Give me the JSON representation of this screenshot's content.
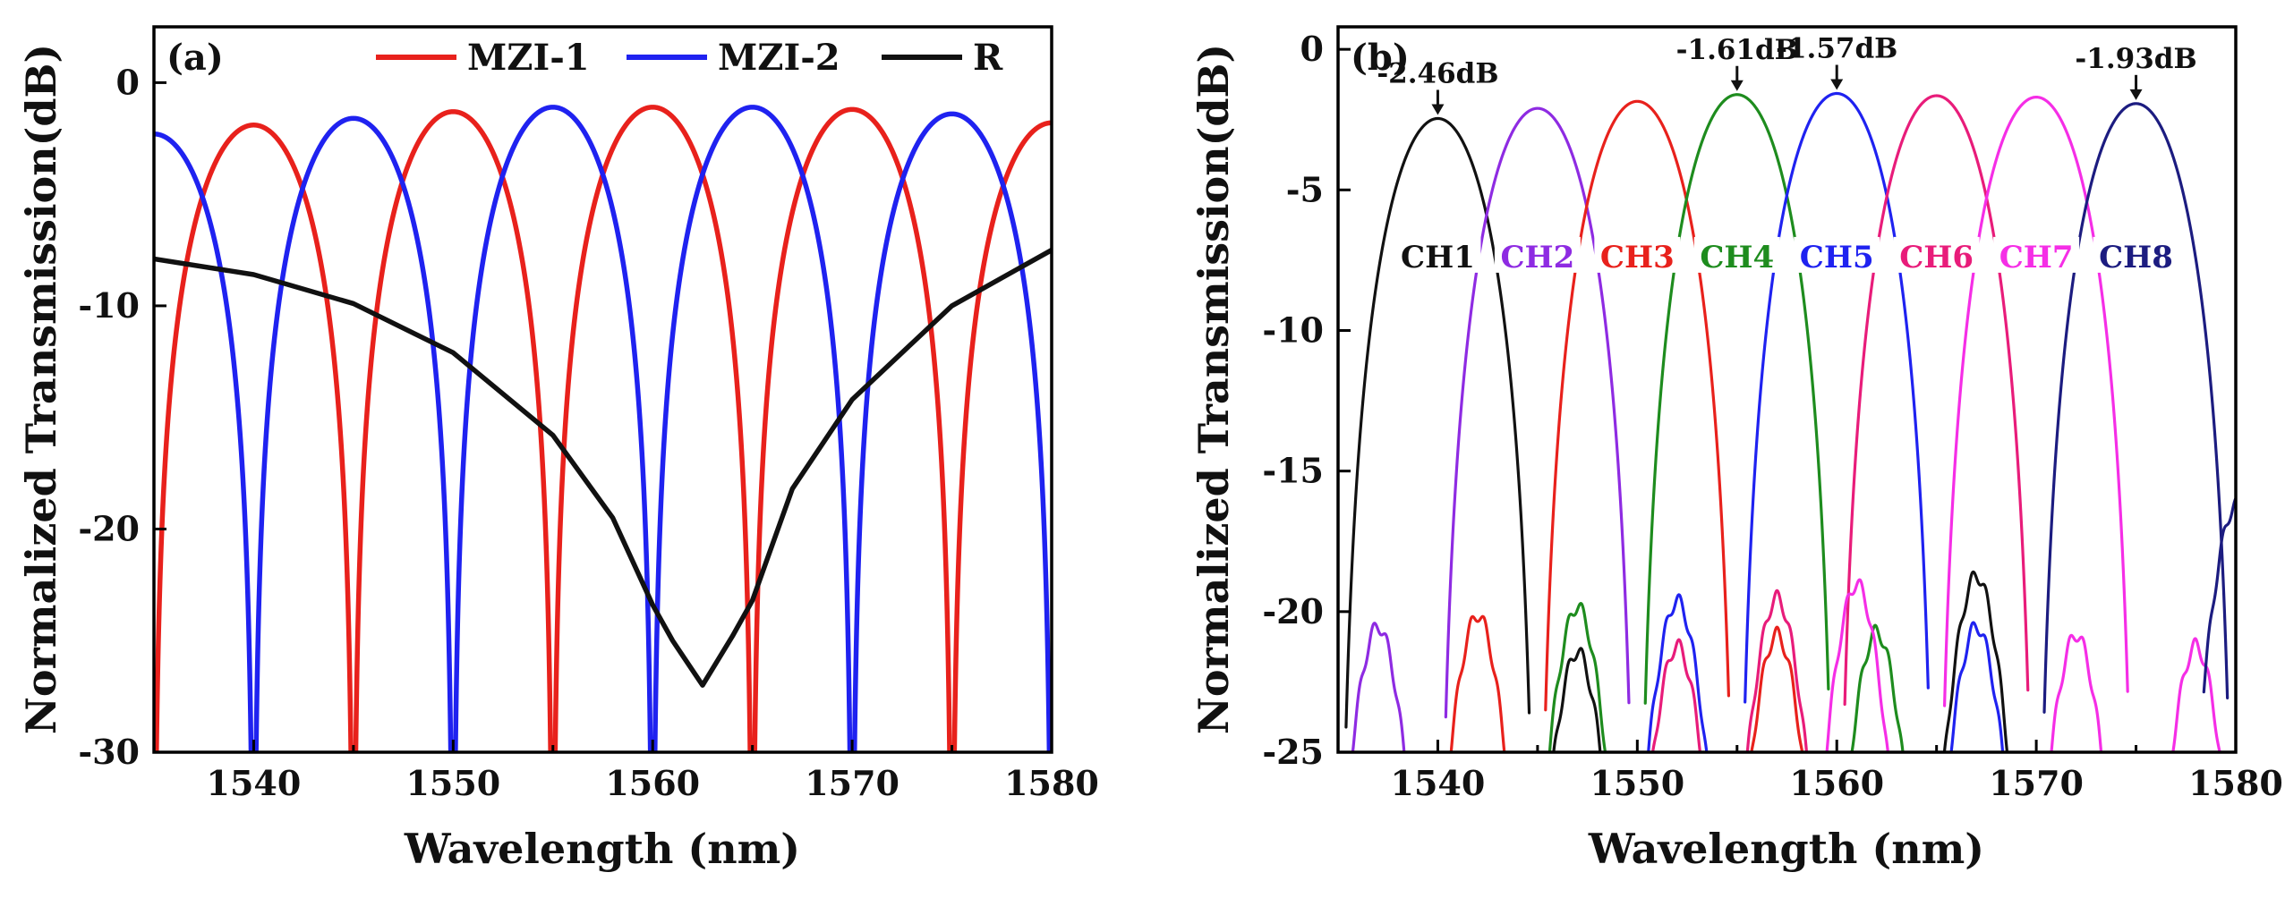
{
  "chart_data": [
    {
      "panel": "(a)",
      "type": "line",
      "xlabel": "Wavelength (nm)",
      "ylabel": "Normalized Transmission(dB)",
      "xlim": [
        1535,
        1580
      ],
      "ylim": [
        -30,
        2.5
      ],
      "xticks": [
        1540,
        1550,
        1560,
        1570,
        1580
      ],
      "yticks": [
        0,
        -10,
        -20,
        -30
      ],
      "legend_position": "top",
      "series": [
        {
          "name": "MZI-1",
          "color": "#e8211c",
          "null_wavelengths": [
            1535,
            1545,
            1555,
            1565,
            1575
          ],
          "peaks": [
            [
              1540,
              -1.9
            ],
            [
              1550,
              -1.3
            ],
            [
              1560,
              -1.1
            ],
            [
              1570,
              -1.2
            ],
            [
              1580,
              -1.8
            ]
          ],
          "floor": -30
        },
        {
          "name": "MZI-2",
          "color": "#1f22f0",
          "null_wavelengths": [
            1540,
            1550,
            1560,
            1570,
            1580
          ],
          "peaks": [
            [
              1535,
              -2.3
            ],
            [
              1545,
              -1.6
            ],
            [
              1555,
              -1.1
            ],
            [
              1565,
              -1.1
            ],
            [
              1575,
              -1.4
            ]
          ],
          "floor": -30
        },
        {
          "name": "R",
          "color": "#111111",
          "x": [
            1535,
            1540,
            1545,
            1550,
            1555,
            1558,
            1560,
            1561,
            1562.5,
            1564,
            1565,
            1567,
            1570,
            1575,
            1580
          ],
          "y": [
            -7.9,
            -8.6,
            -9.9,
            -12.1,
            -15.8,
            -19.5,
            -23.4,
            -25.0,
            -27.0,
            -24.8,
            -23.2,
            -18.2,
            -14.2,
            -10.0,
            -7.5
          ]
        }
      ]
    },
    {
      "panel": "(b)",
      "type": "line",
      "xlabel": "Wavelength (nm)",
      "ylabel": "Normalized Transmission(dB)",
      "xlim": [
        1535,
        1580
      ],
      "ylim": [
        -25,
        0.8
      ],
      "xticks": [
        1540,
        1550,
        1560,
        1570,
        1580
      ],
      "yticks": [
        0,
        -5,
        -10,
        -15,
        -20,
        -25
      ],
      "series": [
        {
          "name": "CH1",
          "color": "#111111",
          "center": 1540,
          "peak": -2.46,
          "sidelobes": [
            [
              1547,
              -21.4
            ],
            [
              1567,
              -18.7
            ]
          ]
        },
        {
          "name": "CH2",
          "color": "#8e2be2",
          "center": 1545,
          "peak": -2.1,
          "sidelobes": [
            [
              1537,
              -20.5
            ]
          ]
        },
        {
          "name": "CH3",
          "color": "#e8211c",
          "center": 1550,
          "peak": -1.85,
          "sidelobes": [
            [
              1542,
              -20.1
            ],
            [
              1557,
              -20.8
            ]
          ]
        },
        {
          "name": "CH4",
          "color": "#1e8c1e",
          "center": 1555,
          "peak": -1.61,
          "sidelobes": [
            [
              1547,
              -19.8
            ],
            [
              1562,
              -20.7
            ]
          ]
        },
        {
          "name": "CH5",
          "color": "#1f22f0",
          "center": 1560,
          "peak": -1.57,
          "sidelobes": [
            [
              1552,
              -19.6
            ],
            [
              1567,
              -20.5
            ]
          ]
        },
        {
          "name": "CH6",
          "color": "#e81c7a",
          "center": 1565,
          "peak": -1.65,
          "sidelobes": [
            [
              1552,
              -21.2
            ],
            [
              1557,
              -19.5
            ]
          ]
        },
        {
          "name": "CH7",
          "color": "#f52ee6",
          "center": 1570,
          "peak": -1.7,
          "sidelobes": [
            [
              1561,
              -19.0
            ],
            [
              1572,
              -20.8
            ],
            [
              1578,
              -21.2
            ]
          ]
        },
        {
          "name": "CH8",
          "color": "#1c1c80",
          "center": 1575,
          "peak": -1.93,
          "sidelobes": [
            [
              1580,
              -16.2
            ]
          ]
        }
      ],
      "annotations": [
        {
          "text": "-2.46dB",
          "x": 1540,
          "y": -2.46
        },
        {
          "text": "-1.61dB",
          "x": 1555,
          "y": -1.61
        },
        {
          "text": "-1.57dB",
          "x": 1560,
          "y": -1.57
        },
        {
          "text": "-1.93dB",
          "x": 1575,
          "y": -1.93
        }
      ]
    }
  ]
}
